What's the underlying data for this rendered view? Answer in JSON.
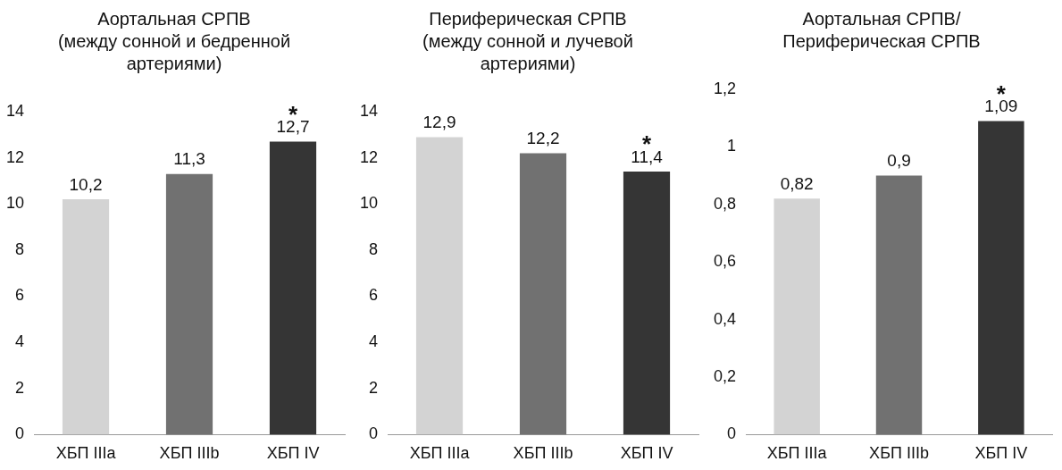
{
  "chart_data": [
    {
      "type": "bar",
      "title": "Аортальная СРПВ\n(между сонной и бедренной\nартериями)",
      "categories": [
        "ХБП IIIa",
        "ХБП IIIb",
        "ХБП IV"
      ],
      "values": [
        10.2,
        11.3,
        12.7
      ],
      "colors": [
        "#d3d3d3",
        "#717171",
        "#353535"
      ],
      "value_labels": [
        "10,2",
        "11,3",
        "12,7"
      ],
      "ylim": [
        0,
        14
      ],
      "yticks": [
        0,
        2,
        4,
        6,
        8,
        10,
        12,
        14
      ],
      "annotations": [
        {
          "text": "*",
          "x": "ХБП IV",
          "y": 12.7
        }
      ]
    },
    {
      "type": "bar",
      "title": "Периферическая СРПВ\n(между сонной и лучевой\nартериями)",
      "categories": [
        "ХБП IIIa",
        "ХБП IIIb",
        "ХБП IV"
      ],
      "values": [
        12.9,
        12.2,
        11.4
      ],
      "colors": [
        "#d3d3d3",
        "#717171",
        "#353535"
      ],
      "value_labels": [
        "12,9",
        "12,2",
        "11,4"
      ],
      "ylim": [
        0,
        14
      ],
      "yticks": [
        0,
        2,
        4,
        6,
        8,
        10,
        12,
        14
      ],
      "annotations": [
        {
          "text": "*",
          "x": "ХБП IV",
          "y": 11.4
        }
      ]
    },
    {
      "type": "bar",
      "title": "Аортальная СРПВ/\nПериферическая СРПВ",
      "categories": [
        "ХБП IIIa",
        "ХБП IIIb",
        "ХБП IV"
      ],
      "values": [
        0.82,
        0.9,
        1.09
      ],
      "colors": [
        "#d3d3d3",
        "#717171",
        "#353535"
      ],
      "value_labels": [
        "0,82",
        "0,9",
        "1,09"
      ],
      "ylim": [
        0,
        1.2
      ],
      "yticks": [
        0,
        {
          "value": 0.2,
          "label": "0,2"
        },
        {
          "value": 0.4,
          "label": "0,4"
        },
        {
          "value": 0.6,
          "label": "0,6"
        },
        {
          "value": 0.8,
          "label": "0,8"
        },
        1,
        {
          "value": 1.2,
          "label": "1,2"
        }
      ],
      "annotations": [
        {
          "text": "*",
          "x": "ХБП IV",
          "y": 1.09
        }
      ]
    }
  ]
}
